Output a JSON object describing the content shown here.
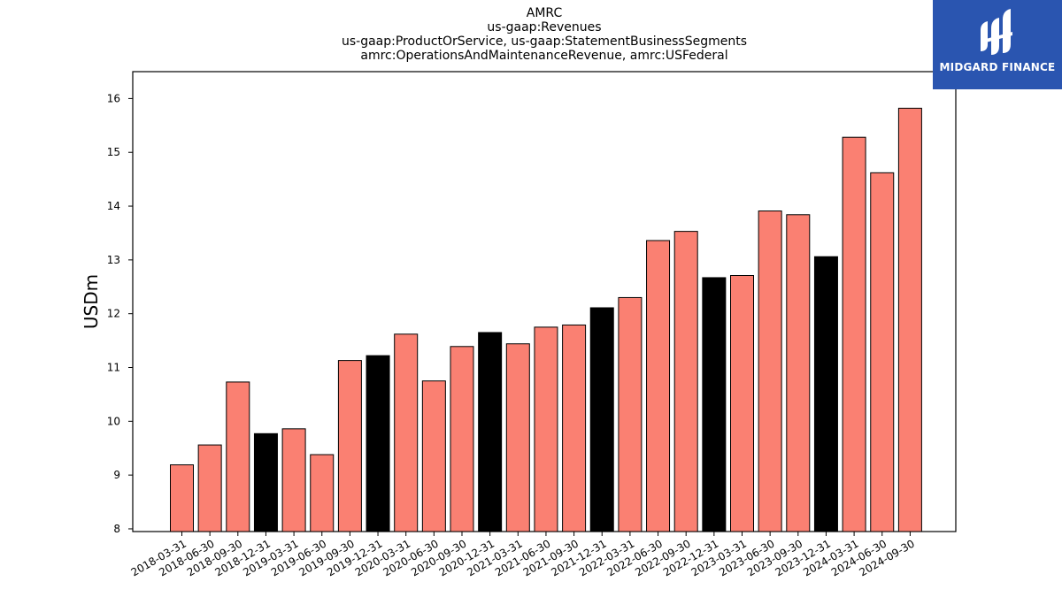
{
  "chart_data": {
    "type": "bar",
    "title_lines": [
      "AMRC",
      "us-gaap:Revenues",
      "us-gaap:ProductOrService, us-gaap:StatementBusinessSegments",
      "amrc:OperationsAndMaintenanceRevenue, amrc:USFederal"
    ],
    "xlabel": "",
    "ylabel": "USDm",
    "ylim": [
      7.95,
      16.5
    ],
    "yticks": [
      8,
      9,
      10,
      11,
      12,
      13,
      14,
      15,
      16
    ],
    "grid": false,
    "categories": [
      "2018-03-31",
      "2018-06-30",
      "2018-09-30",
      "2018-12-31",
      "2019-03-31",
      "2019-06-30",
      "2019-09-30",
      "2019-12-31",
      "2020-03-31",
      "2020-06-30",
      "2020-09-30",
      "2020-12-31",
      "2021-03-31",
      "2021-06-30",
      "2021-09-30",
      "2021-12-31",
      "2022-03-31",
      "2022-06-30",
      "2022-09-30",
      "2022-12-31",
      "2023-03-31",
      "2023-06-30",
      "2023-09-30",
      "2023-12-31",
      "2024-03-31",
      "2024-06-30",
      "2024-09-30"
    ],
    "values": [
      9.19,
      9.56,
      10.73,
      9.77,
      9.86,
      9.38,
      11.13,
      11.22,
      11.62,
      10.75,
      11.39,
      11.65,
      11.44,
      11.75,
      11.79,
      12.11,
      12.3,
      13.36,
      13.53,
      12.67,
      12.71,
      13.91,
      13.84,
      13.06,
      15.28,
      14.62,
      15.82
    ],
    "bar_kind": [
      "q",
      "q",
      "q",
      "fy",
      "q",
      "q",
      "q",
      "fy",
      "q",
      "q",
      "q",
      "fy",
      "q",
      "q",
      "q",
      "fy",
      "q",
      "q",
      "q",
      "fy",
      "q",
      "q",
      "q",
      "fy",
      "q",
      "q",
      "q"
    ],
    "colors": {
      "q": "#fa8072",
      "fy": "#000000",
      "edge": "#000000"
    }
  },
  "logo": {
    "text": "MIDGARD FINANCE",
    "icon": "midgard-logo-icon",
    "background": "#2a55b0"
  }
}
